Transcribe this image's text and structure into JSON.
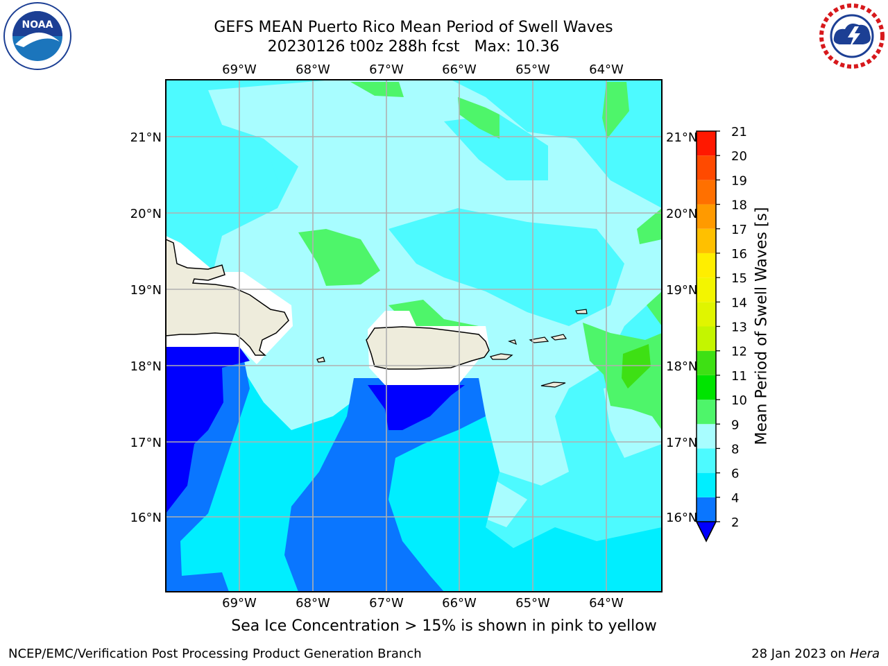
{
  "title": {
    "line1": "GEFS MEAN Puerto Rico Mean Period of Swell Waves",
    "line2": "20230126 t00z 288h fcst   Max: 10.36"
  },
  "logos": {
    "left": "noaa-logo",
    "right": "nws-logo"
  },
  "map": {
    "lon_labels": [
      "69°W",
      "68°W",
      "67°W",
      "66°W",
      "65°W",
      "64°W"
    ],
    "lat_labels": [
      "21°N",
      "20°N",
      "19°N",
      "18°N",
      "17°N",
      "16°N"
    ],
    "colors": {
      "land": "#eeecdc",
      "gridline": "#b0b0b0"
    }
  },
  "colorbar": {
    "label": "Mean Period of Swell Waves [s]",
    "ticks": [
      "2",
      "4",
      "6",
      "8",
      "9",
      "10",
      "11",
      "12",
      "13",
      "14",
      "15",
      "16",
      "17",
      "18",
      "19",
      "20",
      "21"
    ],
    "bins": [
      {
        "from": 2,
        "to": 4,
        "color": "#0a76ff"
      },
      {
        "from": 4,
        "to": 6,
        "color": "#00eeff"
      },
      {
        "from": 6,
        "to": 8,
        "color": "#4dfaff"
      },
      {
        "from": 8,
        "to": 9,
        "color": "#a8fdff"
      },
      {
        "from": 9,
        "to": 10,
        "color": "#4ef56a"
      },
      {
        "from": 10,
        "to": 11,
        "color": "#00e400"
      },
      {
        "from": 11,
        "to": 12,
        "color": "#3ee014"
      },
      {
        "from": 12,
        "to": 13,
        "color": "#c4f500"
      },
      {
        "from": 13,
        "to": 14,
        "color": "#e0f500"
      },
      {
        "from": 14,
        "to": 15,
        "color": "#f3f500"
      },
      {
        "from": 15,
        "to": 16,
        "color": "#ffee00"
      },
      {
        "from": 16,
        "to": 17,
        "color": "#ffc000"
      },
      {
        "from": 17,
        "to": 18,
        "color": "#ff9a00"
      },
      {
        "from": 18,
        "to": 19,
        "color": "#ff7000"
      },
      {
        "from": 19,
        "to": 20,
        "color": "#ff4a00"
      },
      {
        "from": 20,
        "to": 21,
        "color": "#ff1800"
      }
    ],
    "under_color": "#0000ff"
  },
  "note": "Sea Ice Concentration > 15% is shown in pink to yellow",
  "footer": {
    "left": "NCEP/EMC/Verification Post Processing Product Generation Branch",
    "right_prefix": "28 Jan 2023 on ",
    "right_machine": "Hera"
  }
}
